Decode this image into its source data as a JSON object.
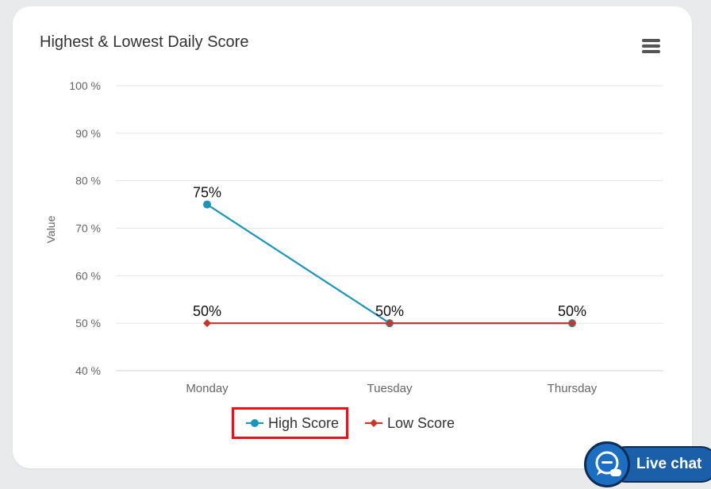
{
  "card": {
    "title": "Highest & Lowest Daily Score",
    "menu_icon": "hamburger-menu-icon"
  },
  "chart_data": {
    "type": "line",
    "title": "Highest & Lowest Daily Score",
    "xlabel": "",
    "ylabel": "Value",
    "ylim": [
      40,
      100
    ],
    "yticks": [
      "40 %",
      "50 %",
      "60 %",
      "70 %",
      "80 %",
      "90 %",
      "100 %"
    ],
    "categories": [
      "Monday",
      "Tuesday",
      "Thursday"
    ],
    "grid": true,
    "legend_placement": "bottom-center",
    "series": [
      {
        "name": "High Score",
        "values": [
          75,
          50,
          50
        ],
        "labels": [
          "75%",
          "50%",
          "50%"
        ],
        "color": "#1c96b8",
        "marker": "circle"
      },
      {
        "name": "Low Score",
        "values": [
          50,
          50,
          50
        ],
        "labels": [
          "50%",
          "50%",
          "50%"
        ],
        "color": "#c8352a",
        "marker": "diamond"
      }
    ],
    "highlighted_legend_item": "High Score",
    "highlight_color": "#e8121b"
  },
  "live_chat": {
    "label": "Live chat",
    "icon": "chat-bubble-icon"
  }
}
